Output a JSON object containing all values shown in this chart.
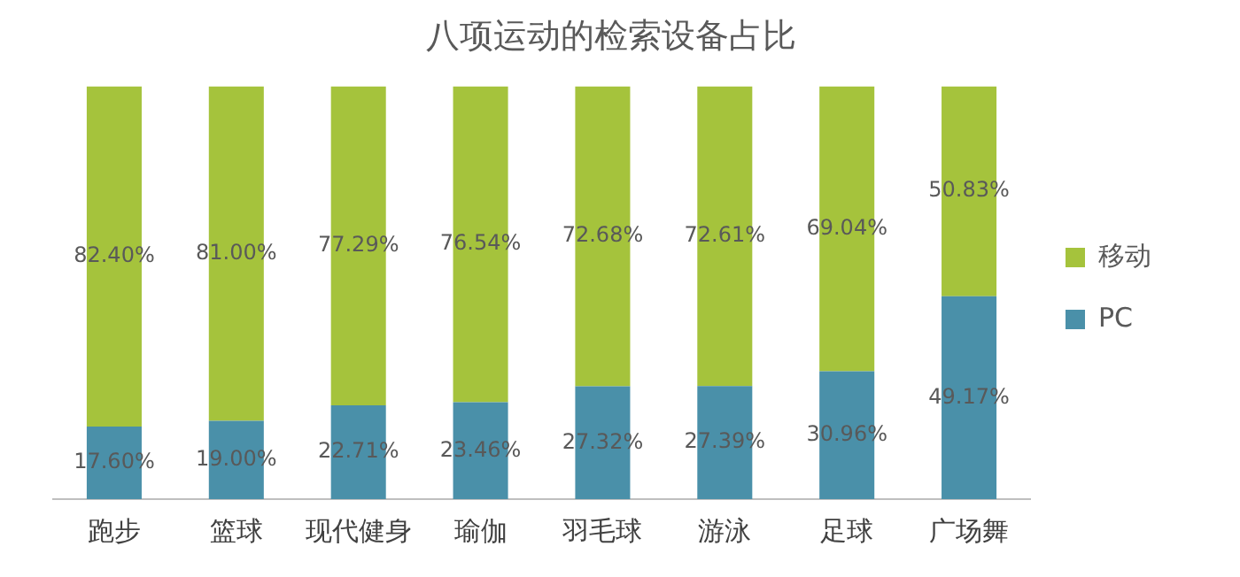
{
  "chart_data": {
    "type": "bar",
    "title": "八项运动的检索设备占比",
    "stacked": true,
    "categories": [
      "跑步",
      "篮球",
      "现代健身",
      "瑜伽",
      "羽毛球",
      "游泳",
      "足球",
      "广场舞"
    ],
    "ylim": [
      0,
      100
    ],
    "tick_labels": "x",
    "legend": "right",
    "grid": false,
    "series": [
      {
        "name": "PC",
        "color": "#4a90a9",
        "values": [
          17.6,
          19.0,
          22.71,
          23.46,
          27.32,
          27.39,
          30.96,
          49.17
        ],
        "value_labels": [
          "17.60%",
          "19.00%",
          "22.71%",
          "23.46%",
          "27.32%",
          "27.39%",
          "30.96%",
          "49.17%"
        ]
      },
      {
        "name": "移动",
        "color": "#a5c33c",
        "values": [
          82.4,
          81.0,
          77.29,
          76.54,
          72.68,
          72.61,
          69.04,
          50.83
        ],
        "value_labels": [
          "82.40%",
          "81.00%",
          "77.29%",
          "76.54%",
          "72.68%",
          "72.61%",
          "69.04%",
          "50.83%"
        ]
      }
    ]
  }
}
